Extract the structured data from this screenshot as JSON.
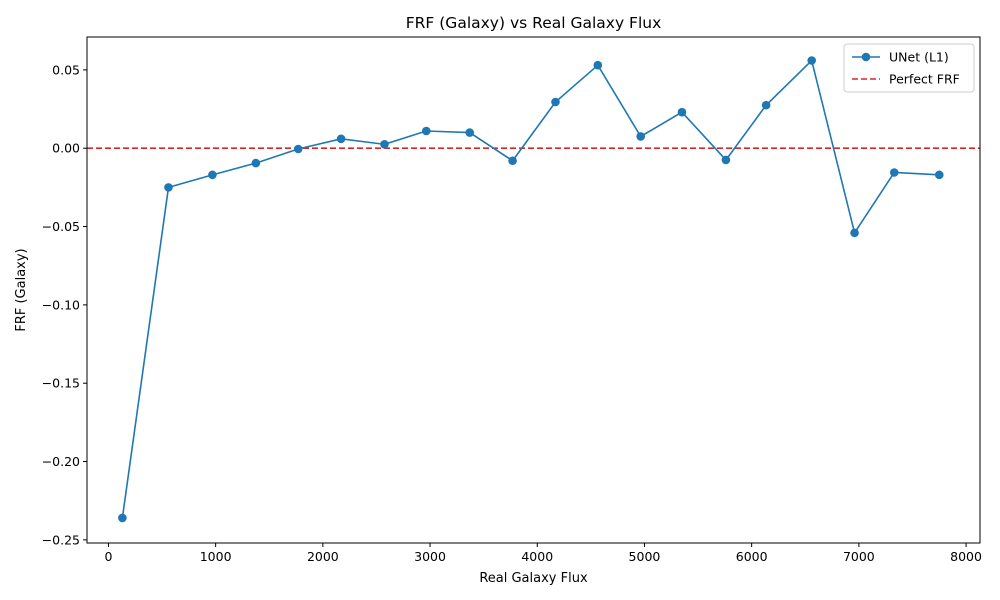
{
  "chart_data": {
    "type": "line",
    "title": "FRF (Galaxy) vs Real Galaxy Flux",
    "xlabel": "Real Galaxy Flux",
    "ylabel": "FRF (Galaxy)",
    "xlim": [
      -200,
      8130
    ],
    "ylim": [
      -0.252,
      0.071
    ],
    "xticks": [
      0,
      1000,
      2000,
      3000,
      4000,
      5000,
      6000,
      7000,
      8000
    ],
    "xtick_labels": [
      "0",
      "1000",
      "2000",
      "3000",
      "4000",
      "5000",
      "6000",
      "7000",
      "8000"
    ],
    "yticks": [
      0.05,
      0.0,
      -0.05,
      -0.1,
      -0.15,
      -0.2,
      -0.25
    ],
    "ytick_labels": [
      "0.05",
      "0.00",
      "−0.05",
      "−0.10",
      "−0.15",
      "−0.20",
      "−0.25"
    ],
    "series": [
      {
        "name": "UNet (L1)",
        "color": "#1f77b4",
        "marker": "circle",
        "x": [
          130,
          560,
          970,
          1375,
          1770,
          2170,
          2575,
          2965,
          3370,
          3770,
          4170,
          4565,
          4965,
          5350,
          5760,
          6135,
          6560,
          6960,
          7330,
          7750
        ],
        "y": [
          -0.236,
          -0.025,
          -0.017,
          -0.0095,
          -0.0005,
          0.006,
          0.0025,
          0.011,
          0.01,
          -0.008,
          0.0295,
          0.053,
          0.0075,
          0.023,
          -0.0075,
          0.0275,
          0.056,
          -0.054,
          -0.0155,
          -0.017
        ]
      },
      {
        "name": "Perfect FRF",
        "color": "#d62728",
        "style": "dashed",
        "y_constant": 0.0
      }
    ],
    "legend_position": "top-right",
    "grid": false
  }
}
